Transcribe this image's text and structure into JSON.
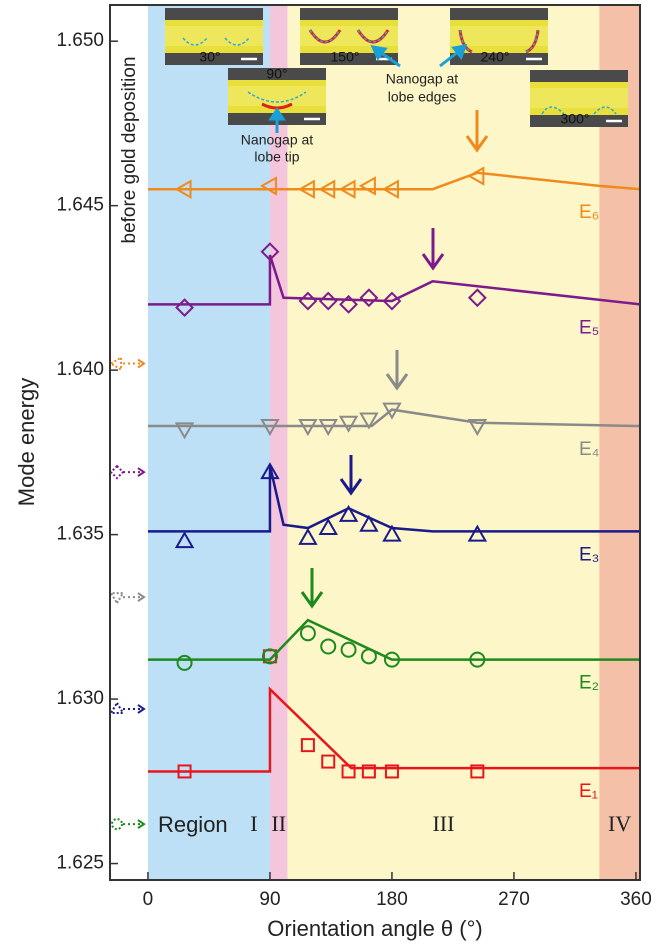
{
  "chart_data": {
    "type": "scatter-line",
    "x_label": "Orientation angle θ (°)",
    "y_label": "Mode energy",
    "before_label": "before gold deposition",
    "xlim": [
      -28,
      363
    ],
    "ylim": [
      1.6245,
      1.6511
    ],
    "xticks": [
      0,
      90,
      180,
      270,
      360
    ],
    "yticks": [
      {
        "value": 1.625,
        "label": "1.625"
      },
      {
        "value": 1.63,
        "label": "1.630"
      },
      {
        "value": 1.635,
        "label": "1.635"
      },
      {
        "value": 1.64,
        "label": "1.640"
      },
      {
        "value": 1.645,
        "label": "1.645"
      },
      {
        "value": 1.65,
        "label": "1.650"
      }
    ],
    "region_word": "Region",
    "regions": [
      {
        "label": "I",
        "range": [
          0,
          90
        ],
        "color": "#bde0f6"
      },
      {
        "label": "II",
        "range": [
          90,
          103
        ],
        "color": "#f4c6dc"
      },
      {
        "label": "III",
        "range": [
          103,
          333
        ],
        "color": "#fdf6c8"
      },
      {
        "label": "IV",
        "range": [
          333,
          363
        ],
        "color": "#f4c0a8"
      }
    ],
    "x": [
      27,
      90,
      118,
      133,
      148,
      163,
      180,
      243
    ],
    "series": [
      {
        "name": "E₁",
        "color": "#e8161c",
        "marker": "square",
        "before": null,
        "values": [
          1.6278,
          1.6313,
          1.6286,
          1.6281,
          1.6278,
          1.6278,
          1.6278,
          1.6278
        ],
        "line_x": [
          0,
          90,
          90,
          150,
          363
        ],
        "line_y": [
          1.6278,
          1.6278,
          1.6303,
          1.6279,
          1.6279
        ]
      },
      {
        "name": "E₂",
        "color": "#1c8a1c",
        "marker": "circle",
        "before": 1.6262,
        "values": [
          1.6311,
          1.6313,
          1.632,
          1.6316,
          1.6315,
          1.6313,
          1.6312,
          1.6312
        ],
        "line_x": [
          0,
          90,
          118,
          180,
          363
        ],
        "line_y": [
          1.6312,
          1.6312,
          1.6324,
          1.6312,
          1.6312
        ]
      },
      {
        "name": "E₃",
        "color": "#1a1a8c",
        "marker": "triangle-up",
        "before": 1.6297,
        "values": [
          1.6348,
          1.6369,
          1.6349,
          1.6352,
          1.6356,
          1.6353,
          1.635,
          1.635
        ],
        "line_x": [
          0,
          90,
          90,
          100,
          118,
          148,
          180,
          210,
          363
        ],
        "line_y": [
          1.6351,
          1.6351,
          1.6371,
          1.6353,
          1.6352,
          1.6358,
          1.6352,
          1.6351,
          1.6351
        ]
      },
      {
        "name": "E₄",
        "color": "#8a8a8a",
        "marker": "triangle-down",
        "before": 1.6331,
        "values": [
          1.6382,
          1.6383,
          1.6383,
          1.6383,
          1.6384,
          1.6385,
          1.6388,
          1.6383
        ],
        "line_x": [
          0,
          165,
          180,
          243,
          363
        ],
        "line_y": [
          1.6383,
          1.6383,
          1.6388,
          1.6384,
          1.6383
        ]
      },
      {
        "name": "E₅",
        "color": "#7d1a8c",
        "marker": "diamond",
        "before": 1.6369,
        "values": [
          1.6419,
          1.6436,
          1.6421,
          1.6421,
          1.642,
          1.6422,
          1.6421,
          1.6422
        ],
        "line_x": [
          0,
          90,
          90,
          100,
          180,
          210,
          363
        ],
        "line_y": [
          1.642,
          1.642,
          1.6435,
          1.6422,
          1.6421,
          1.6427,
          1.642
        ]
      },
      {
        "name": "E₆",
        "color": "#f08a1c",
        "marker": "triangle-left",
        "before": 1.6402,
        "values": [
          1.6455,
          1.6456,
          1.6455,
          1.6455,
          1.6455,
          1.6456,
          1.6455,
          1.6459
        ],
        "line_x": [
          0,
          210,
          243,
          333,
          363
        ],
        "line_y": [
          1.6455,
          1.6455,
          1.646,
          1.6456,
          1.6455
        ]
      }
    ],
    "insets": [
      {
        "label": "30°"
      },
      {
        "label": "150°"
      },
      {
        "label": "240°"
      },
      {
        "label": "90°"
      },
      {
        "label": "300°"
      }
    ],
    "annotations": {
      "tip": [
        "Nanogap at",
        "lobe tip"
      ],
      "edges": [
        "Nanogap at",
        "lobe edges"
      ]
    }
  }
}
